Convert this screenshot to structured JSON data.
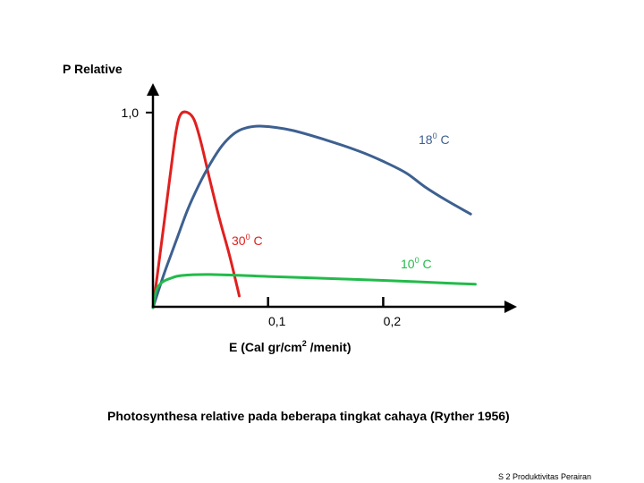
{
  "chart_data": {
    "type": "line",
    "ylabel": "P Relative",
    "xlabel_main": "E (Cal gr/cm",
    "xlabel_sup": "2",
    "xlabel_tail": " /menit)",
    "y_ticks": [
      {
        "value": 1.0,
        "label": "1,0"
      }
    ],
    "x_ticks": [
      {
        "value": 0.1,
        "label": "0,1"
      },
      {
        "value": 0.2,
        "label": "0,2"
      }
    ],
    "xlim": [
      0,
      0.31
    ],
    "ylim": [
      0,
      1.1
    ],
    "series": [
      {
        "name_main": "30",
        "name_sup": "0",
        "name_tail": " C",
        "color": "#e0201e",
        "points": [
          [
            0,
            0
          ],
          [
            0.005,
            0.22
          ],
          [
            0.01,
            0.45
          ],
          [
            0.015,
            0.68
          ],
          [
            0.02,
            0.9
          ],
          [
            0.024,
            0.99
          ],
          [
            0.03,
            1.0
          ],
          [
            0.036,
            0.96
          ],
          [
            0.042,
            0.84
          ],
          [
            0.05,
            0.64
          ],
          [
            0.058,
            0.45
          ],
          [
            0.066,
            0.28
          ],
          [
            0.073,
            0.11
          ],
          [
            0.075,
            0.06
          ]
        ]
      },
      {
        "name_main": "18",
        "name_sup": "0",
        "name_tail": " C",
        "color": "#3d6090",
        "points": [
          [
            0,
            0
          ],
          [
            0.01,
            0.18
          ],
          [
            0.02,
            0.34
          ],
          [
            0.03,
            0.5
          ],
          [
            0.04,
            0.63
          ],
          [
            0.05,
            0.74
          ],
          [
            0.06,
            0.83
          ],
          [
            0.07,
            0.89
          ],
          [
            0.08,
            0.92
          ],
          [
            0.095,
            0.93
          ],
          [
            0.12,
            0.91
          ],
          [
            0.15,
            0.86
          ],
          [
            0.18,
            0.8
          ],
          [
            0.2,
            0.75
          ],
          [
            0.22,
            0.69
          ],
          [
            0.236,
            0.62
          ],
          [
            0.255,
            0.55
          ],
          [
            0.276,
            0.48
          ]
        ]
      },
      {
        "name_main": "10",
        "name_sup": "0",
        "name_tail": " C",
        "color": "#22bb4a",
        "points": [
          [
            0,
            0
          ],
          [
            0.003,
            0.09
          ],
          [
            0.008,
            0.13
          ],
          [
            0.015,
            0.15
          ],
          [
            0.025,
            0.165
          ],
          [
            0.05,
            0.17
          ],
          [
            0.1,
            0.16
          ],
          [
            0.15,
            0.15
          ],
          [
            0.2,
            0.14
          ],
          [
            0.24,
            0.13
          ],
          [
            0.28,
            0.12
          ]
        ]
      }
    ],
    "caption": "Photosynthesa relative pada beberapa tingkat cahaya (Ryther 1956)",
    "footer": "S 2 Produktivitas Perairan"
  }
}
